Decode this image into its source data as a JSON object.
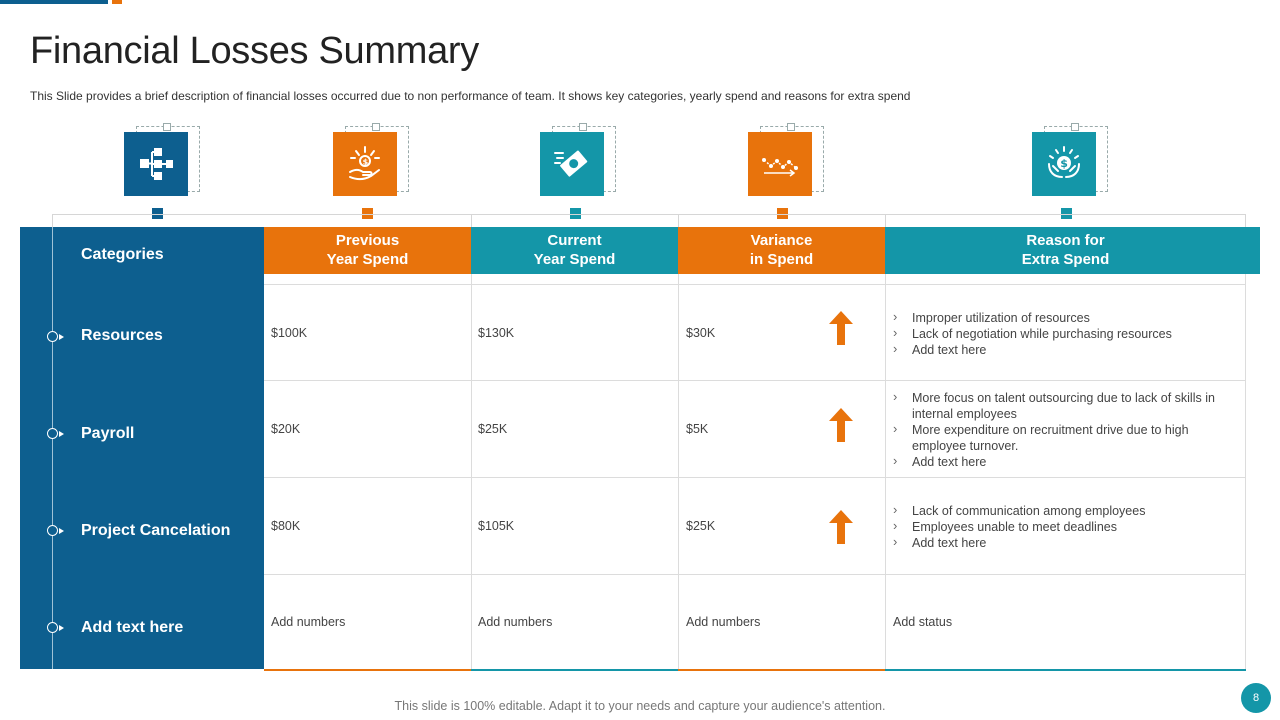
{
  "title": "Financial Losses Summary",
  "subtitle": "This Slide provides  a brief description of financial losses occurred due to non performance  of team. It shows key categories,  yearly spend and reasons for extra spend",
  "colors": {
    "blue": "#0d5f8f",
    "orange": "#e8730c",
    "teal": "#1496a8"
  },
  "icons": [
    "hierarchy-icon",
    "money-hand-icon",
    "cash-flow-icon",
    "line-trend-icon",
    "dollar-hands-icon"
  ],
  "columns": {
    "categories": "Categories",
    "previous": [
      "Previous",
      "Year Spend"
    ],
    "current": [
      "Current",
      "Year Spend"
    ],
    "variance": [
      "Variance",
      "in Spend"
    ],
    "reason": [
      "Reason for",
      "Extra Spend"
    ]
  },
  "rows": [
    {
      "category": "Resources",
      "previous": "$100K",
      "current": "$130K",
      "variance": "$30K",
      "trend": "up-arrow-icon",
      "reasons": [
        "Improper  utilization of resources",
        "Lack of negotiation  while purchasing resources",
        "Add text here"
      ]
    },
    {
      "category": "Payroll",
      "previous": "$20K",
      "current": "$25K",
      "variance": "$5K",
      "trend": "up-arrow-icon",
      "reasons": [
        "More focus on talent outsourcing due to lack of skills in internal employees",
        "More expenditure  on recruitment drive  due to high employee turnover.",
        "Add text here"
      ]
    },
    {
      "category": "Project Cancelation",
      "previous": "$80K",
      "current": "$105K",
      "variance": "$25K",
      "trend": "up-arrow-icon",
      "reasons": [
        "Lack of communication among employees",
        "Employees unable  to meet deadlines",
        "Add text here"
      ]
    },
    {
      "category": "Add text here",
      "previous": "Add numbers",
      "current": "Add numbers",
      "variance": "Add numbers",
      "status": "Add status"
    }
  ],
  "footer": "This slide is 100%  editable.  Adapt it to your needs and capture your audience's attention.",
  "page_number": "8"
}
